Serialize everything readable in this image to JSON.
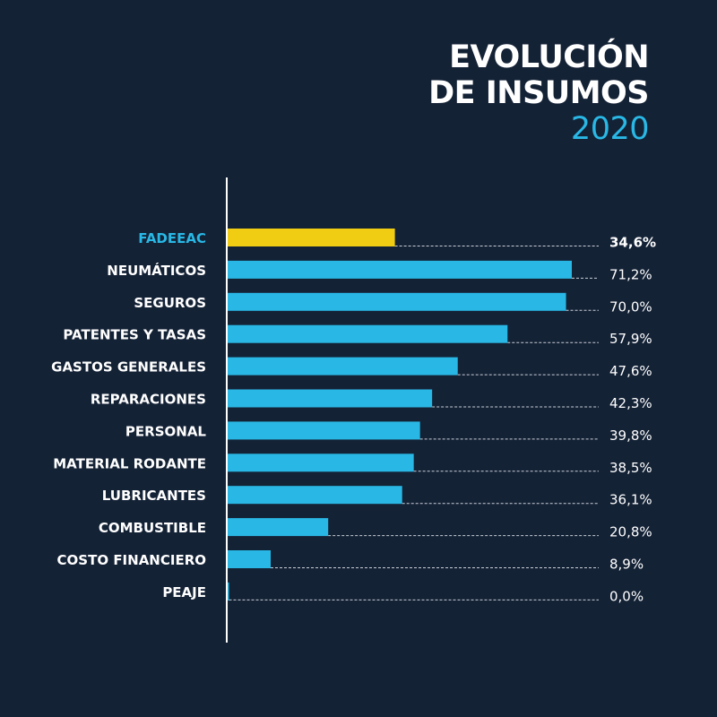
{
  "chart_data": {
    "type": "bar",
    "orientation": "horizontal",
    "title": [
      "EVOLUCIÓN",
      "DE INSUMOS"
    ],
    "subtitle": "2020",
    "categories": [
      "FADEEAC",
      "NEUMÁTICOS",
      "SEGUROS",
      "PATENTES Y TASAS",
      "GASTOS GENERALES",
      "REPARACIONES",
      "PERSONAL",
      "MATERIAL RODANTE",
      "LUBRICANTES",
      "COMBUSTIBLE",
      "COSTO FINANCIERO",
      "PEAJE"
    ],
    "values": [
      34.6,
      71.2,
      70.0,
      57.9,
      47.6,
      42.3,
      39.8,
      38.5,
      36.1,
      20.8,
      8.9,
      0.0
    ],
    "value_labels": [
      "34,6%",
      "71,2%",
      "70,0%",
      "57,9%",
      "47,6%",
      "42,3%",
      "39,8%",
      "38,5%",
      "36,1%",
      "20,8%",
      "8,9%",
      "0,0%"
    ],
    "highlight_index": 0,
    "colors": {
      "background": "#142236",
      "bar": "#29b8e5",
      "highlight_bar": "#f0cd12",
      "highlight_label": "#29b8e5",
      "text": "#ffffff"
    },
    "xlim": [
      0,
      75
    ],
    "grid": false
  }
}
